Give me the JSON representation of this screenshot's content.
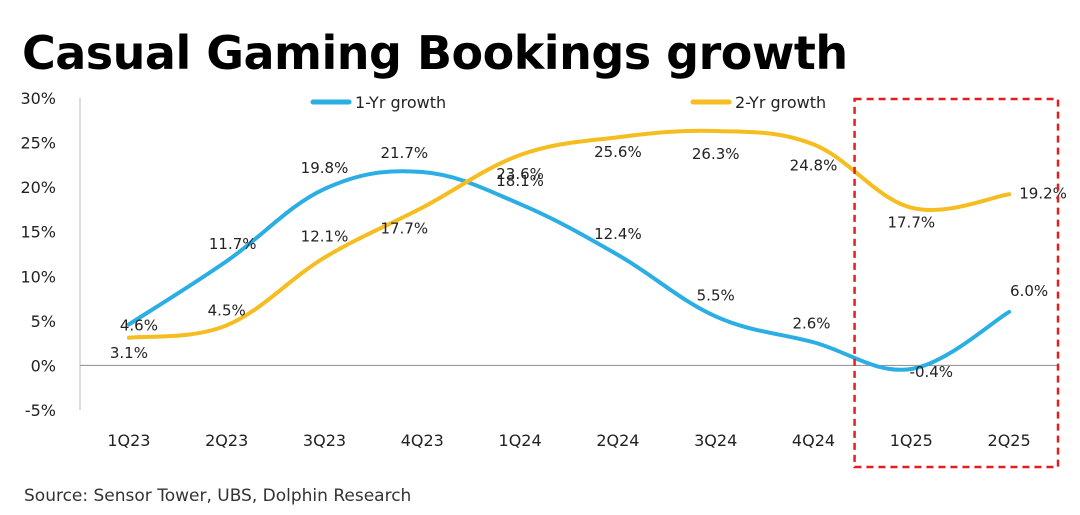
{
  "title": "Casual Gaming Bookings growth",
  "source": "Source: Sensor Tower, UBS, Dolphin Research",
  "colors": {
    "series1": "#2AAEE3",
    "series2": "#F5BD1F",
    "highlight": "#E02020",
    "zero_line": "#999999"
  },
  "chart_data": {
    "type": "line",
    "categories": [
      "1Q23",
      "2Q23",
      "3Q23",
      "4Q23",
      "1Q24",
      "2Q24",
      "3Q24",
      "4Q24",
      "1Q25",
      "2Q25"
    ],
    "y_tick_labels": [
      "30%",
      "25%",
      "20%",
      "15%",
      "10%",
      "5%",
      "0%",
      "-5%"
    ],
    "y_ticks": [
      30,
      25,
      20,
      15,
      10,
      5,
      0,
      -5
    ],
    "ylim": [
      -5,
      30
    ],
    "legend_position": "top",
    "highlight_categories": [
      "1Q25",
      "2Q25"
    ],
    "series": [
      {
        "name": "1-Yr growth",
        "values": [
          4.6,
          11.7,
          19.8,
          21.7,
          18.1,
          12.4,
          5.5,
          2.6,
          -0.4,
          6.0
        ],
        "labels": [
          "4.6%",
          "11.7%",
          "19.8%",
          "21.7%",
          "18.1%",
          "12.4%",
          "5.5%",
          "2.6%",
          "-0.4%",
          "6.0%"
        ]
      },
      {
        "name": "2-Yr growth",
        "values": [
          3.1,
          4.5,
          12.1,
          17.7,
          23.6,
          25.6,
          26.3,
          24.8,
          17.7,
          19.2
        ],
        "labels": [
          "3.1%",
          "4.5%",
          "12.1%",
          "17.7%",
          "23.6%",
          "25.6%",
          "26.3%",
          "24.8%",
          "17.7%",
          "19.2%"
        ]
      }
    ]
  }
}
